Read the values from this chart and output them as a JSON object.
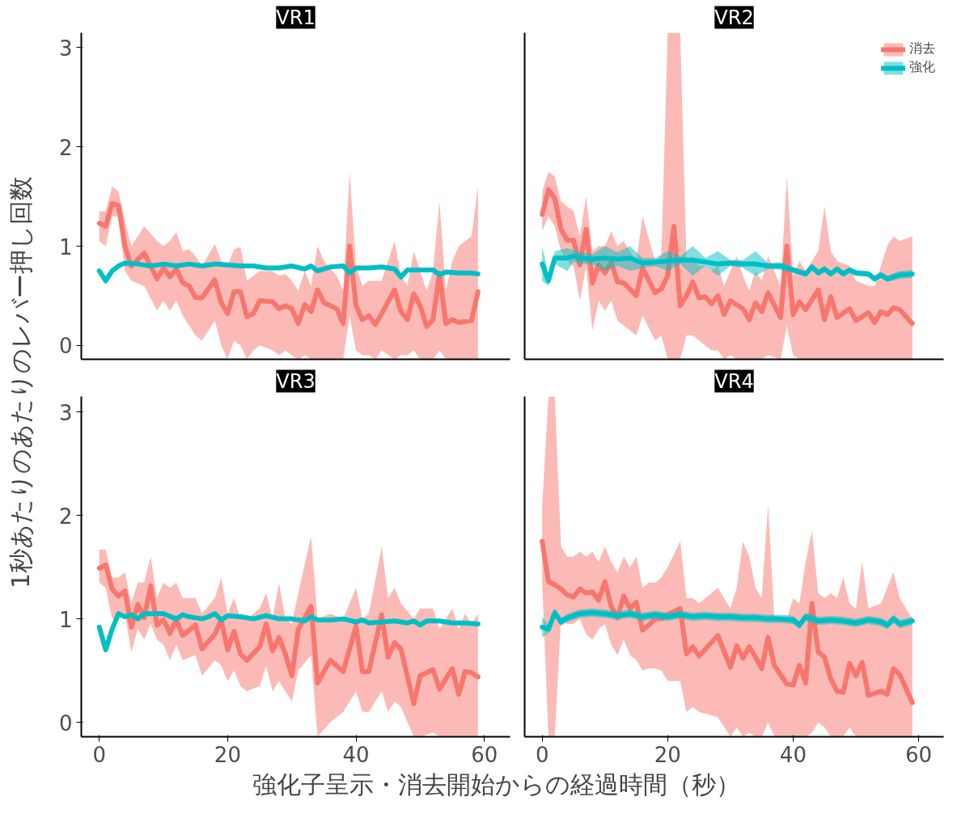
{
  "chart_data": [
    {
      "type": "line",
      "title": "VR1",
      "ylabel": "1秒あたりのあたりのレバー押し回数",
      "xlim": [
        -2.8,
        64
      ],
      "ylim": [
        -0.14,
        3.15
      ],
      "xticks": [
        0,
        20,
        40,
        60
      ],
      "yticks": [
        0,
        1,
        2,
        3
      ],
      "tick_labels": "y",
      "series": [
        {
          "color": "#f8766d",
          "x": [
            0,
            1,
            2,
            3,
            4,
            5,
            7,
            9,
            10,
            11,
            12,
            13,
            14,
            15,
            16,
            18,
            19,
            20,
            21,
            22,
            23,
            24,
            25,
            27,
            28,
            29,
            30,
            31,
            32,
            33,
            34,
            35,
            37,
            38,
            39,
            40,
            41,
            42,
            43,
            44,
            46,
            47,
            48,
            49,
            50,
            51,
            52,
            53,
            54,
            55,
            56,
            58,
            59
          ],
          "values": [
            1.23,
            1.2,
            1.43,
            1.41,
            1.0,
            0.8,
            0.93,
            0.67,
            0.78,
            0.69,
            0.77,
            0.63,
            0.6,
            0.48,
            0.48,
            0.66,
            0.43,
            0.32,
            0.54,
            0.54,
            0.29,
            0.32,
            0.45,
            0.44,
            0.37,
            0.4,
            0.37,
            0.22,
            0.41,
            0.34,
            0.56,
            0.43,
            0.37,
            0.22,
            1.0,
            0.4,
            0.26,
            0.3,
            0.21,
            0.32,
            0.56,
            0.34,
            0.26,
            0.52,
            0.4,
            0.19,
            0.26,
            0.73,
            0.22,
            0.26,
            0.23,
            0.25,
            0.54
          ],
          "lower": [
            1.05,
            1.0,
            1.3,
            1.3,
            0.75,
            0.65,
            0.6,
            0.35,
            0.45,
            0.35,
            0.45,
            0.3,
            0.2,
            0.1,
            0.05,
            0.25,
            0.0,
            -0.14,
            0.05,
            0.0,
            -0.14,
            -0.05,
            0.0,
            -0.05,
            -0.1,
            -0.05,
            -0.1,
            -0.14,
            -0.1,
            -0.14,
            -0.14,
            -0.14,
            -0.14,
            -0.14,
            0.3,
            -0.05,
            -0.1,
            -0.1,
            -0.14,
            -0.05,
            -0.14,
            -0.1,
            -0.1,
            -0.05,
            -0.14,
            -0.14,
            -0.14,
            -0.05,
            -0.14,
            -0.14,
            -0.14,
            -0.14,
            -0.14
          ],
          "upper": [
            1.35,
            1.35,
            1.6,
            1.55,
            1.25,
            1.0,
            1.2,
            1.05,
            1.0,
            1.05,
            1.14,
            0.95,
            0.97,
            0.9,
            0.8,
            1.02,
            0.85,
            0.8,
            0.97,
            0.99,
            0.65,
            0.7,
            0.75,
            0.75,
            0.7,
            0.72,
            0.65,
            0.55,
            0.75,
            0.6,
            1.0,
            0.85,
            0.7,
            0.55,
            1.75,
            0.8,
            0.6,
            0.65,
            0.65,
            0.65,
            1.05,
            0.7,
            0.6,
            0.95,
            0.75,
            0.55,
            0.75,
            1.45,
            0.55,
            0.85,
            1.0,
            1.1,
            1.6
          ]
        },
        {
          "color": "#00bfc4",
          "x": [
            0,
            1,
            2,
            3,
            4,
            6,
            8,
            10,
            12,
            14,
            16,
            18,
            20,
            22,
            24,
            26,
            28,
            30,
            32,
            33,
            34,
            36,
            38,
            39,
            40,
            42,
            44,
            46,
            47,
            48,
            50,
            52,
            53,
            54,
            56,
            58,
            59
          ],
          "values": [
            0.75,
            0.65,
            0.75,
            0.8,
            0.83,
            0.82,
            0.8,
            0.82,
            0.8,
            0.82,
            0.8,
            0.82,
            0.81,
            0.8,
            0.8,
            0.78,
            0.78,
            0.8,
            0.77,
            0.8,
            0.75,
            0.79,
            0.8,
            0.73,
            0.78,
            0.78,
            0.79,
            0.77,
            0.69,
            0.76,
            0.76,
            0.76,
            0.71,
            0.74,
            0.73,
            0.73,
            0.72
          ]
        }
      ]
    },
    {
      "type": "line",
      "title": "VR2",
      "xlim": [
        -2.8,
        64
      ],
      "ylim": [
        -0.14,
        3.15
      ],
      "xticks": [
        0,
        20,
        40,
        60
      ],
      "yticks": [
        0,
        1,
        2,
        3
      ],
      "tick_labels": false,
      "legend": "top right",
      "series": [
        {
          "name": "消去",
          "color": "#f8766d",
          "x": [
            0,
            1,
            2,
            3,
            4,
            5,
            6,
            7,
            8,
            9,
            10,
            11,
            12,
            13,
            15,
            16,
            18,
            19,
            20,
            21,
            22,
            23,
            24,
            25,
            26,
            27,
            28,
            29,
            30,
            31,
            32,
            33,
            34,
            35,
            36,
            38,
            39,
            40,
            41,
            42,
            44,
            45,
            46,
            47,
            49,
            50,
            52,
            53,
            54,
            55,
            56,
            57,
            59
          ],
          "values": [
            1.32,
            1.57,
            1.48,
            1.17,
            1.06,
            1.06,
            0.81,
            1.17,
            0.63,
            0.81,
            0.73,
            0.84,
            0.64,
            0.63,
            0.5,
            0.78,
            0.53,
            0.57,
            0.7,
            1.2,
            0.4,
            0.5,
            0.64,
            0.48,
            0.49,
            0.42,
            0.5,
            0.31,
            0.45,
            0.41,
            0.37,
            0.26,
            0.43,
            0.34,
            0.53,
            0.28,
            1.0,
            0.31,
            0.44,
            0.36,
            0.56,
            0.26,
            0.49,
            0.28,
            0.37,
            0.25,
            0.33,
            0.23,
            0.34,
            0.31,
            0.38,
            0.36,
            0.22
          ],
          "lower": [
            1.15,
            1.3,
            1.2,
            0.95,
            0.85,
            0.8,
            0.45,
            0.8,
            0.15,
            0.45,
            0.35,
            0.45,
            0.25,
            0.2,
            0.1,
            0.3,
            0.05,
            0.1,
            -0.14,
            -0.14,
            -0.14,
            0.1,
            0.1,
            0.05,
            0.0,
            -0.05,
            -0.05,
            -0.14,
            -0.1,
            -0.14,
            -0.14,
            -0.14,
            -0.14,
            -0.14,
            -0.1,
            -0.14,
            0.2,
            -0.1,
            -0.14,
            -0.14,
            -0.14,
            -0.14,
            -0.14,
            -0.14,
            -0.14,
            -0.14,
            -0.14,
            -0.14,
            -0.14,
            -0.14,
            -0.14,
            -0.14,
            -0.14
          ],
          "upper": [
            1.55,
            1.75,
            1.7,
            1.45,
            1.4,
            1.35,
            1.1,
            1.5,
            0.95,
            1.0,
            1.0,
            1.15,
            1.0,
            1.05,
            0.85,
            1.3,
            0.85,
            0.9,
            3.15,
            3.15,
            3.15,
            0.85,
            0.9,
            0.8,
            0.8,
            0.75,
            0.8,
            0.6,
            0.75,
            0.9,
            0.7,
            0.55,
            0.75,
            0.65,
            0.9,
            0.6,
            1.7,
            0.7,
            0.85,
            0.75,
            0.95,
            1.4,
            0.95,
            0.85,
            0.8,
            0.65,
            0.6,
            0.6,
            0.8,
            1.0,
            1.1,
            1.05,
            1.1
          ]
        },
        {
          "name": "強化",
          "color": "#00bfc4",
          "x": [
            0,
            1,
            2,
            4,
            5,
            6,
            8,
            10,
            12,
            14,
            16,
            18,
            20,
            22,
            24,
            26,
            28,
            30,
            32,
            34,
            36,
            38,
            40,
            42,
            43,
            44,
            45,
            46,
            47,
            48,
            49,
            50,
            52,
            53,
            54,
            55,
            57,
            59
          ],
          "values": [
            0.82,
            0.65,
            0.88,
            0.88,
            0.9,
            0.88,
            0.87,
            0.88,
            0.87,
            0.88,
            0.83,
            0.84,
            0.85,
            0.86,
            0.86,
            0.84,
            0.82,
            0.83,
            0.82,
            0.82,
            0.8,
            0.8,
            0.76,
            0.72,
            0.79,
            0.73,
            0.77,
            0.72,
            0.77,
            0.72,
            0.76,
            0.73,
            0.72,
            0.67,
            0.71,
            0.67,
            0.71,
            0.72
          ],
          "lower": [
            0.65,
            0.6,
            0.82,
            0.75,
            0.84,
            0.82,
            0.82,
            0.75,
            0.8,
            0.75,
            0.78,
            0.8,
            0.75,
            0.82,
            0.7,
            0.8,
            0.7,
            0.8,
            0.78,
            0.7,
            0.77,
            0.76,
            0.73,
            0.69,
            0.76,
            0.7,
            0.74,
            0.69,
            0.74,
            0.69,
            0.73,
            0.7,
            0.69,
            0.64,
            0.68,
            0.64,
            0.67,
            0.68
          ],
          "upper": [
            1.0,
            0.72,
            0.95,
            0.98,
            0.96,
            0.94,
            0.92,
            1.0,
            0.94,
            1.0,
            0.88,
            0.88,
            0.95,
            0.9,
            1.0,
            0.88,
            0.95,
            0.86,
            0.86,
            0.95,
            0.83,
            0.84,
            0.79,
            0.75,
            0.82,
            0.76,
            0.8,
            0.75,
            0.8,
            0.75,
            0.79,
            0.76,
            0.75,
            0.7,
            0.74,
            0.7,
            0.75,
            0.76
          ]
        }
      ]
    },
    {
      "type": "line",
      "title": "VR3",
      "xlabel": "強化子呈示・消去開始からの経過時間（秒）",
      "xlim": [
        -2.8,
        64
      ],
      "ylim": [
        -0.14,
        3.15
      ],
      "xticks": [
        0,
        20,
        40,
        60
      ],
      "yticks": [
        0,
        1,
        2,
        3
      ],
      "series": [
        {
          "color": "#f8766d",
          "x": [
            0,
            1,
            2,
            3,
            4,
            5,
            6,
            7,
            8,
            9,
            10,
            11,
            12,
            13,
            15,
            16,
            18,
            19,
            20,
            21,
            22,
            23,
            25,
            26,
            27,
            28,
            29,
            30,
            31,
            33,
            34,
            36,
            38,
            40,
            41,
            42,
            44,
            45,
            46,
            47,
            49,
            50,
            52,
            53,
            55,
            56,
            57,
            58,
            59
          ],
          "values": [
            1.49,
            1.52,
            1.29,
            1.22,
            1.27,
            0.92,
            1.14,
            1.01,
            1.32,
            0.94,
            0.99,
            0.86,
            0.99,
            0.84,
            0.94,
            0.71,
            0.85,
            0.99,
            0.7,
            0.88,
            0.66,
            0.6,
            0.73,
            0.95,
            0.69,
            0.82,
            0.66,
            0.45,
            0.9,
            1.12,
            0.38,
            0.6,
            0.49,
            0.93,
            0.49,
            0.49,
            1.04,
            0.63,
            0.77,
            0.71,
            0.18,
            0.45,
            0.51,
            0.32,
            0.52,
            0.27,
            0.49,
            0.48,
            0.44
          ],
          "lower": [
            1.35,
            1.3,
            1.0,
            1.0,
            1.05,
            0.68,
            0.9,
            0.8,
            0.95,
            0.8,
            0.75,
            0.6,
            0.75,
            0.6,
            0.65,
            0.45,
            0.6,
            0.55,
            0.4,
            0.5,
            0.35,
            0.3,
            0.35,
            0.55,
            0.3,
            0.4,
            0.3,
            0.2,
            0.5,
            0.65,
            -0.14,
            0.0,
            0.1,
            0.3,
            0.1,
            0.1,
            0.3,
            0.1,
            0.2,
            0.15,
            -0.14,
            -0.14,
            -0.1,
            -0.14,
            -0.14,
            -0.14,
            -0.14,
            -0.14,
            -0.14
          ],
          "upper": [
            1.67,
            1.67,
            1.4,
            1.4,
            1.45,
            1.15,
            1.35,
            1.35,
            1.6,
            1.2,
            1.35,
            1.3,
            1.35,
            1.2,
            1.2,
            1.05,
            1.2,
            1.4,
            1.05,
            1.2,
            1.0,
            1.0,
            1.1,
            1.25,
            1.0,
            1.35,
            1.0,
            0.95,
            1.25,
            1.8,
            1.0,
            1.05,
            1.0,
            1.3,
            1.0,
            1.05,
            1.7,
            1.2,
            1.3,
            1.15,
            1.0,
            1.1,
            1.1,
            0.9,
            1.1,
            0.9,
            1.05,
            0.95,
            1.05
          ]
        },
        {
          "color": "#00bfc4",
          "x": [
            0,
            1,
            2,
            3,
            4,
            5,
            6,
            7,
            8,
            10,
            12,
            13,
            14,
            16,
            17,
            18,
            19,
            20,
            22,
            24,
            26,
            28,
            30,
            32,
            33,
            34,
            36,
            38,
            40,
            41,
            42,
            44,
            46,
            48,
            49,
            50,
            51,
            53,
            55,
            57,
            59
          ],
          "values": [
            0.92,
            0.7,
            0.9,
            1.05,
            1.02,
            1.04,
            1.0,
            1.05,
            1.05,
            1.05,
            1.0,
            1.04,
            1.02,
            1.0,
            1.02,
            1.05,
            0.99,
            1.03,
            1.02,
            1.0,
            1.03,
            1.0,
            1.0,
            0.98,
            1.02,
            0.99,
            0.99,
            1.0,
            0.97,
            0.99,
            0.96,
            0.97,
            0.98,
            0.96,
            0.98,
            0.94,
            0.98,
            0.98,
            0.96,
            0.96,
            0.95
          ]
        }
      ]
    },
    {
      "type": "line",
      "title": "VR4",
      "xlim": [
        -2.8,
        64
      ],
      "ylim": [
        -0.14,
        3.15
      ],
      "xticks": [
        0,
        20,
        40,
        60
      ],
      "yticks": [
        0,
        1,
        2,
        3
      ],
      "tick_labels": "x",
      "series": [
        {
          "color": "#f8766d",
          "x": [
            0,
            1,
            2,
            3,
            4,
            5,
            6,
            7,
            8,
            9,
            10,
            11,
            12,
            13,
            14,
            15,
            16,
            17,
            18,
            19,
            20,
            22,
            23,
            24,
            25,
            28,
            30,
            31,
            32,
            33,
            34,
            35,
            36,
            37,
            39,
            40,
            41,
            42,
            43,
            44,
            45,
            46,
            47,
            48,
            49,
            50,
            51,
            52,
            54,
            55,
            56,
            57,
            59
          ],
          "values": [
            1.75,
            1.36,
            1.33,
            1.29,
            1.23,
            1.21,
            1.29,
            1.25,
            1.26,
            1.18,
            1.36,
            1.12,
            1.01,
            1.22,
            1.1,
            1.16,
            0.89,
            0.94,
            1.0,
            1.0,
            1.04,
            1.1,
            0.66,
            0.73,
            0.64,
            0.84,
            0.53,
            0.74,
            0.62,
            0.73,
            0.63,
            0.52,
            0.82,
            0.55,
            0.37,
            0.36,
            0.55,
            0.38,
            1.15,
            0.68,
            0.63,
            0.42,
            0.3,
            0.29,
            0.57,
            0.45,
            0.58,
            0.26,
            0.3,
            0.27,
            0.52,
            0.46,
            0.19
          ],
          "lower": [
            1.35,
            -0.14,
            -0.14,
            1.0,
            0.95,
            0.95,
            1.0,
            0.85,
            0.8,
            0.9,
            0.95,
            0.75,
            0.65,
            0.8,
            0.65,
            0.6,
            0.5,
            0.52,
            0.52,
            0.5,
            0.4,
            0.4,
            0.1,
            0.15,
            0.1,
            0.05,
            -0.14,
            -0.05,
            -0.14,
            -0.1,
            -0.14,
            -0.14,
            0.0,
            -0.14,
            -0.14,
            -0.14,
            -0.14,
            -0.14,
            -0.1,
            0.0,
            -0.05,
            -0.14,
            -0.14,
            -0.14,
            -0.05,
            -0.14,
            -0.14,
            -0.14,
            -0.14,
            -0.14,
            -0.14,
            -0.14,
            -0.14
          ],
          "upper": [
            2.1,
            3.15,
            3.15,
            1.7,
            1.6,
            1.6,
            1.65,
            1.6,
            1.65,
            1.55,
            1.7,
            1.55,
            1.45,
            1.6,
            1.5,
            1.6,
            1.3,
            1.35,
            1.35,
            1.4,
            1.5,
            1.75,
            1.2,
            1.2,
            1.15,
            1.3,
            1.1,
            1.3,
            1.75,
            1.6,
            1.3,
            1.2,
            2.1,
            1.0,
            1.0,
            1.2,
            1.15,
            1.55,
            1.85,
            1.25,
            1.2,
            1.25,
            1.2,
            1.4,
            1.15,
            1.1,
            1.55,
            1.1,
            1.15,
            1.3,
            1.45,
            1.2,
            1.0
          ]
        },
        {
          "color": "#00bfc4",
          "x": [
            0,
            1,
            2,
            3,
            4,
            6,
            8,
            10,
            12,
            14,
            16,
            18,
            20,
            22,
            24,
            26,
            28,
            30,
            32,
            34,
            36,
            38,
            40,
            41,
            42,
            44,
            46,
            48,
            50,
            52,
            54,
            55,
            56,
            57,
            59
          ],
          "values": [
            0.92,
            0.9,
            1.06,
            0.97,
            1.01,
            1.05,
            1.06,
            1.05,
            1.03,
            1.05,
            1.02,
            1.04,
            1.02,
            1.04,
            1.02,
            1.03,
            1.02,
            1.02,
            1.01,
            1.01,
            1.0,
            1.0,
            0.99,
            0.94,
            1.02,
            0.98,
            0.99,
            0.98,
            0.96,
            0.99,
            0.97,
            0.94,
            1.0,
            0.95,
            0.98
          ],
          "lower": [
            0.82,
            0.86,
            1.02,
            0.93,
            0.97,
            1.01,
            1.02,
            1.01,
            0.99,
            1.01,
            0.98,
            1.0,
            0.98,
            1.0,
            0.98,
            0.99,
            0.98,
            0.98,
            0.97,
            0.97,
            0.96,
            0.96,
            0.95,
            0.9,
            0.98,
            0.94,
            0.95,
            0.94,
            0.92,
            0.95,
            0.93,
            0.9,
            0.96,
            0.91,
            0.94
          ],
          "upper": [
            1.02,
            0.94,
            1.1,
            1.01,
            1.05,
            1.09,
            1.1,
            1.09,
            1.07,
            1.09,
            1.06,
            1.08,
            1.06,
            1.08,
            1.06,
            1.07,
            1.06,
            1.06,
            1.05,
            1.05,
            1.04,
            1.04,
            1.03,
            0.98,
            1.06,
            1.02,
            1.03,
            1.02,
            1.0,
            1.03,
            1.01,
            0.98,
            1.04,
            0.99,
            1.02
          ]
        }
      ]
    }
  ]
}
